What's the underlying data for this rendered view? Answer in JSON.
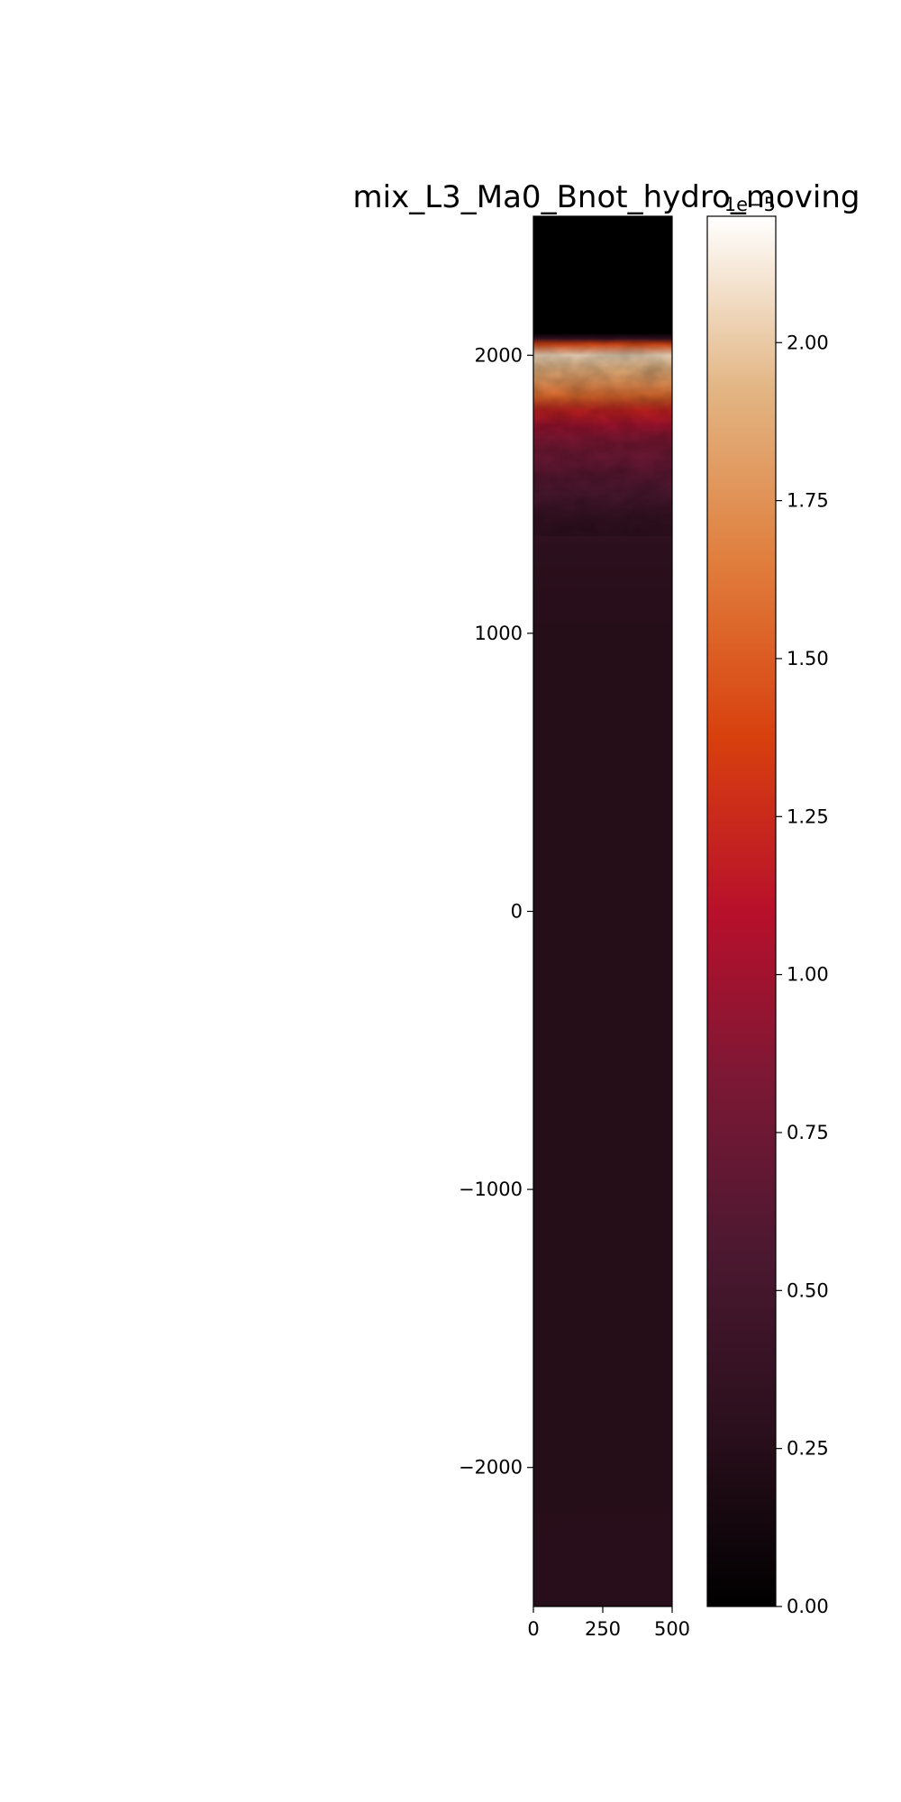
{
  "chart_data": {
    "type": "heatmap",
    "title": "mix_L3_Ma0_Bnot_hydro_moving",
    "xlabel": "",
    "ylabel": "",
    "xlim": [
      0,
      500
    ],
    "ylim": [
      -2500,
      2500
    ],
    "x_ticks": [
      0,
      250,
      500
    ],
    "x_tick_labels": [
      "0",
      "250",
      "500"
    ],
    "y_ticks": [
      2000,
      1000,
      0,
      -1000,
      -2000
    ],
    "y_tick_labels": [
      "2000",
      "1000",
      "0",
      "−1000",
      "−2000"
    ],
    "field_profile": {
      "description_levels": "approximate field value along y (data units, times 1e-5)",
      "y": [
        2500,
        2080,
        2060,
        2040,
        2000,
        1950,
        1900,
        1850,
        1800,
        1750,
        1700,
        1650,
        1600,
        1500,
        1400,
        1300,
        1000,
        0,
        -1000,
        -2000,
        -2500
      ],
      "value": [
        0.0,
        0.0,
        0.4,
        1.4,
        2.05,
        1.9,
        1.75,
        1.55,
        1.2,
        1.0,
        0.85,
        0.75,
        0.7,
        0.55,
        0.35,
        0.28,
        0.25,
        0.25,
        0.25,
        0.25,
        0.26
      ]
    },
    "colorbar": {
      "colormap": "heat",
      "range": [
        0,
        2.2
      ],
      "multiplier_label": "1e−5",
      "ticks": [
        0.0,
        0.25,
        0.5,
        0.75,
        1.0,
        1.25,
        1.5,
        1.75,
        2.0
      ],
      "tick_labels": [
        "0.00",
        "0.25",
        "0.50",
        "0.75",
        "1.00",
        "1.25",
        "1.50",
        "1.75",
        "2.00"
      ],
      "colors": [
        "#000000",
        "#2a0f1c",
        "#4a1830",
        "#7a1835",
        "#b8102b",
        "#d8400e",
        "#e07d3c",
        "#e2b583",
        "#ffffff"
      ]
    }
  }
}
